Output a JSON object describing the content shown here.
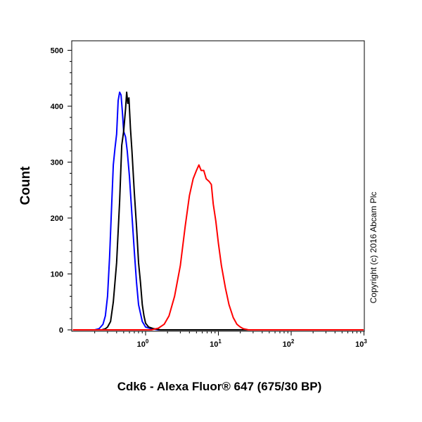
{
  "chart_data": {
    "type": "line",
    "xlabel": "Cdk6 - Alexa Fluor® 647 (675/30 BP)",
    "ylabel": "Count",
    "xscale": "log",
    "xlim": [
      0.1,
      1000
    ],
    "ylim": [
      0,
      520
    ],
    "yticks": [
      "0",
      "100",
      "200",
      "300",
      "400",
      "500"
    ],
    "xticks": [
      {
        "base": "10",
        "exp": "0"
      },
      {
        "base": "10",
        "exp": "1"
      },
      {
        "base": "10",
        "exp": "2"
      },
      {
        "base": "10",
        "exp": "3"
      }
    ],
    "annotation": "Copyright (c) 2016 Abcam Plc",
    "series": [
      {
        "color": "#0000ff",
        "x": [
          0.1,
          0.2,
          0.23,
          0.26,
          0.28,
          0.3,
          0.32,
          0.34,
          0.36,
          0.38,
          0.4,
          0.42,
          0.44,
          0.46,
          0.48,
          0.5,
          0.53,
          0.56,
          0.6,
          0.65,
          0.7,
          0.75,
          0.8,
          0.9,
          1.0,
          1.2,
          1.5,
          2,
          5,
          10,
          100,
          1000
        ],
        "y": [
          0,
          0,
          2,
          10,
          25,
          60,
          130,
          215,
          295,
          325,
          350,
          410,
          425,
          420,
          390,
          355,
          345,
          320,
          275,
          205,
          140,
          85,
          45,
          15,
          5,
          2,
          0,
          0,
          0,
          0,
          0,
          0
        ]
      },
      {
        "color": "#000000",
        "x": [
          0.1,
          0.25,
          0.28,
          0.3,
          0.33,
          0.36,
          0.4,
          0.44,
          0.47,
          0.5,
          0.53,
          0.55,
          0.57,
          0.59,
          0.62,
          0.65,
          0.7,
          0.75,
          0.8,
          0.85,
          0.9,
          0.95,
          1.0,
          1.1,
          1.3,
          1.6,
          2,
          5,
          10,
          100,
          1000
        ],
        "y": [
          0,
          0,
          2,
          5,
          15,
          50,
          120,
          230,
          330,
          355,
          395,
          425,
          405,
          415,
          360,
          320,
          245,
          185,
          120,
          85,
          45,
          25,
          12,
          5,
          2,
          0,
          0,
          0,
          0,
          0,
          0
        ]
      },
      {
        "color": "#ff0000",
        "x": [
          0.1,
          1.2,
          1.5,
          1.8,
          2.1,
          2.5,
          3.0,
          3.5,
          4.0,
          4.5,
          5.0,
          5.4,
          5.8,
          6.3,
          6.8,
          7.5,
          8.0,
          8.5,
          9.2,
          10,
          11,
          12.5,
          14,
          16,
          18,
          20,
          22,
          26,
          30,
          100,
          1000
        ],
        "y": [
          0,
          0,
          3,
          10,
          25,
          60,
          115,
          185,
          240,
          270,
          285,
          295,
          285,
          285,
          270,
          265,
          260,
          225,
          195,
          155,
          115,
          75,
          45,
          22,
          10,
          5,
          2,
          0,
          0,
          0,
          0
        ]
      }
    ]
  }
}
